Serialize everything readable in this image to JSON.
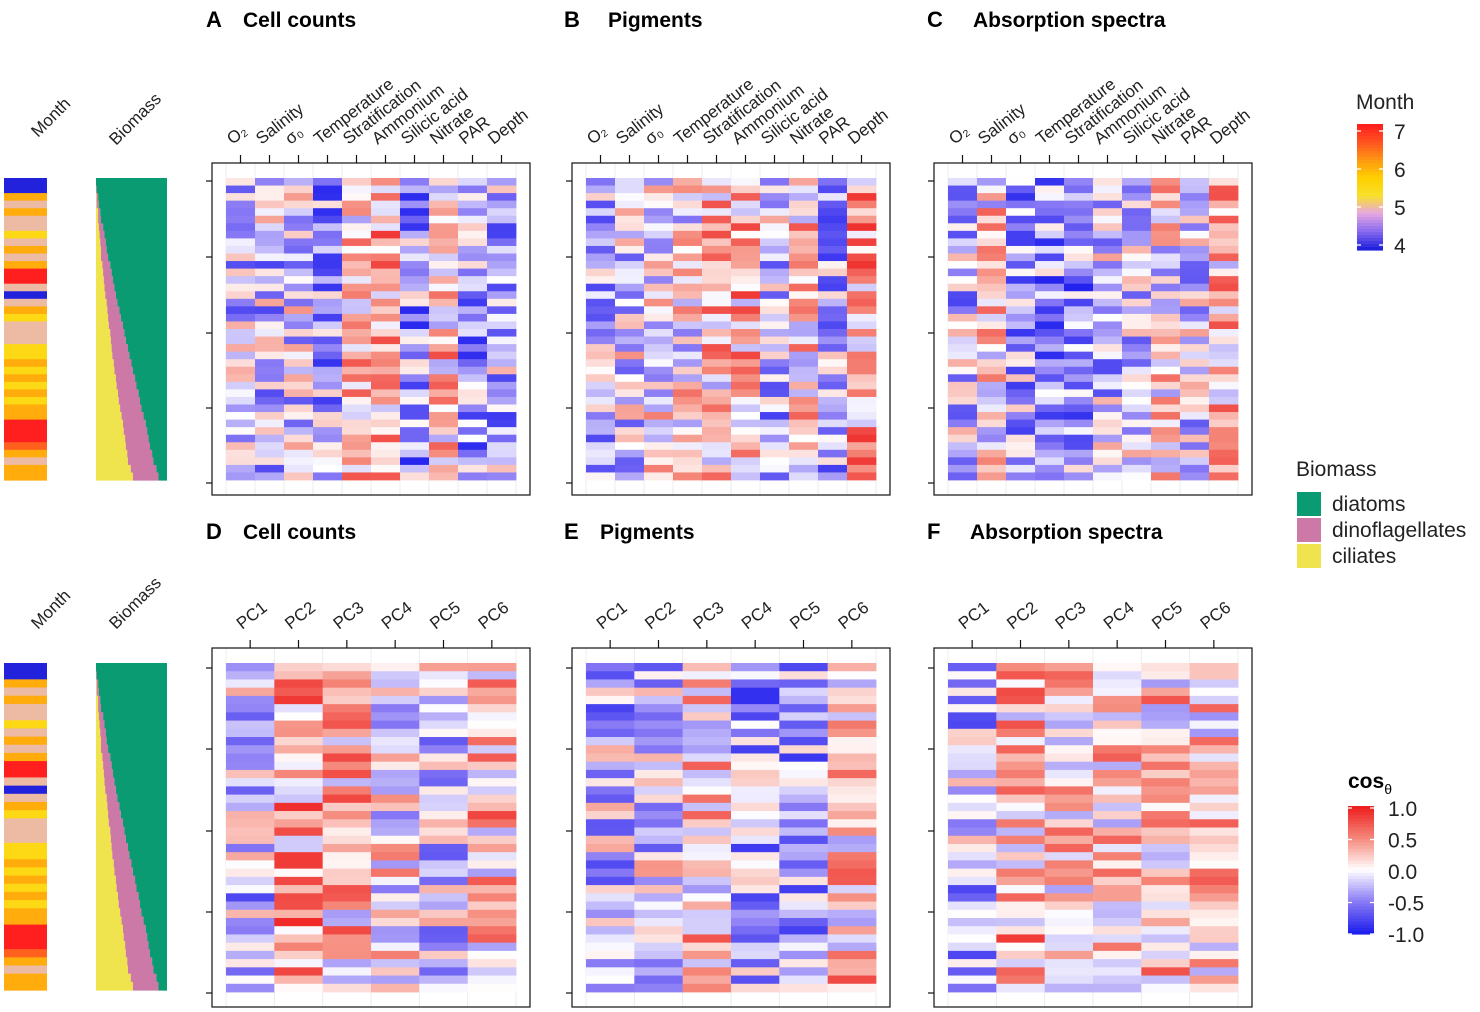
{
  "leading": {
    "month_label": "Month",
    "biomass_label": "Biomass"
  },
  "legends": {
    "month": {
      "title": "Month",
      "ticks": [
        "7",
        "6",
        "5",
        "4"
      ],
      "colors": [
        "#2222dd",
        "#8c6cf0",
        "#e7a8e0",
        "#f8e02a",
        "#ffd000",
        "#ff9a12",
        "#ff5520",
        "#ff1f1f"
      ]
    },
    "biomass": {
      "title": "Biomass",
      "items": [
        {
          "label": "diatoms",
          "color": "#0b9b72"
        },
        {
          "label": "dinoflagellates",
          "color": "#cc79a7"
        },
        {
          "label": "ciliates",
          "color": "#efe44d"
        }
      ]
    },
    "cos": {
      "title_main": "cos",
      "title_sub": "θ",
      "ticks": [
        "1.0",
        "0.5",
        "0.0",
        "-0.5",
        "-1.0"
      ],
      "colors": [
        "#2020ee",
        "#8b7cf5",
        "#ffffff",
        "#f58a7c",
        "#ee2020"
      ]
    }
  },
  "chart_data": [
    {
      "panel": "A",
      "title": "Cell counts",
      "type": "heatmap",
      "rows": 40,
      "seed": 11,
      "columns": [
        "O₂",
        "Salinity",
        "σ₀",
        "Temperature",
        "Stratification",
        "Ammonium",
        "Silicic acid",
        "Nitrate",
        "PAR",
        "Depth"
      ],
      "value_range": [
        -1,
        1
      ]
    },
    {
      "panel": "B",
      "title": "Pigments",
      "type": "heatmap",
      "rows": 40,
      "seed": 23,
      "columns": [
        "O₂",
        "Salinity",
        "σ₀",
        "Temperature",
        "Stratification",
        "Ammonium",
        "Silicic acid",
        "Nitrate",
        "PAR",
        "Depth"
      ],
      "value_range": [
        -1,
        1
      ]
    },
    {
      "panel": "C",
      "title": "Absorption spectra",
      "type": "heatmap",
      "rows": 40,
      "seed": 37,
      "columns": [
        "O₂",
        "Salinity",
        "σ₀",
        "Temperature",
        "Stratification",
        "Ammonium",
        "Silicic acid",
        "Nitrate",
        "PAR",
        "Depth"
      ],
      "value_range": [
        -1,
        1
      ]
    },
    {
      "panel": "D",
      "title": "Cell counts",
      "type": "heatmap",
      "rows": 40,
      "seed": 51,
      "columns": [
        "PC1",
        "PC2",
        "PC3",
        "PC4",
        "PC5",
        "PC6"
      ],
      "value_range": [
        -1,
        1
      ]
    },
    {
      "panel": "E",
      "title": "Pigments",
      "type": "heatmap",
      "rows": 40,
      "seed": 67,
      "columns": [
        "PC1",
        "PC2",
        "PC3",
        "PC4",
        "PC5",
        "PC6"
      ],
      "value_range": [
        -1,
        1
      ]
    },
    {
      "panel": "F",
      "title": "Absorption spectra",
      "type": "heatmap",
      "rows": 40,
      "seed": 83,
      "columns": [
        "PC1",
        "PC2",
        "PC3",
        "PC4",
        "PC5",
        "PC6"
      ],
      "value_range": [
        -1,
        1
      ]
    }
  ],
  "samples": {
    "month": [
      4,
      4,
      6,
      5,
      6,
      5,
      5,
      5.5,
      5,
      6,
      5,
      6,
      7,
      7,
      5,
      4,
      5,
      6,
      5.5,
      5,
      5,
      5,
      5.5,
      5.5,
      6,
      5.5,
      6,
      5.5,
      6,
      5.5,
      6,
      6,
      7,
      7,
      7,
      6.5,
      6,
      5,
      6,
      6
    ],
    "diatoms": [
      1,
      0.99,
      0.97,
      0.96,
      0.94,
      0.93,
      0.9,
      0.88,
      0.86,
      0.85,
      0.83,
      0.8,
      0.78,
      0.76,
      0.74,
      0.72,
      0.7,
      0.67,
      0.65,
      0.62,
      0.6,
      0.58,
      0.55,
      0.53,
      0.5,
      0.48,
      0.45,
      0.43,
      0.4,
      0.38,
      0.36,
      0.33,
      0.3,
      0.28,
      0.26,
      0.24,
      0.21,
      0.19,
      0.15,
      0.12
    ],
    "dinoflagellates": [
      0,
      0.01,
      0.02,
      0.03,
      0.03,
      0.04,
      0.06,
      0.07,
      0.08,
      0.08,
      0.1,
      0.11,
      0.12,
      0.13,
      0.14,
      0.15,
      0.15,
      0.17,
      0.18,
      0.2,
      0.2,
      0.21,
      0.23,
      0.24,
      0.25,
      0.26,
      0.27,
      0.28,
      0.29,
      0.3,
      0.3,
      0.31,
      0.32,
      0.33,
      0.33,
      0.34,
      0.35,
      0.36,
      0.36,
      0.36
    ]
  }
}
